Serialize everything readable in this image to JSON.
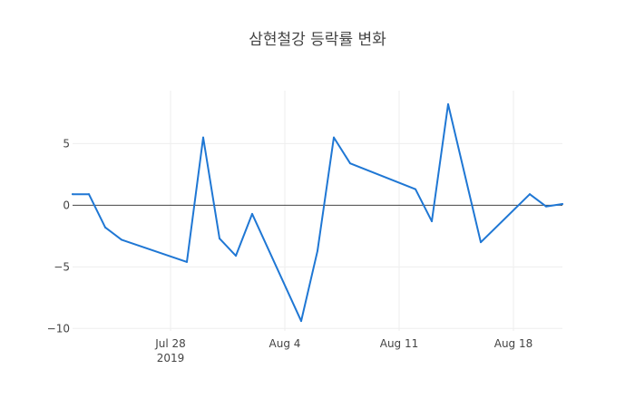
{
  "chart_data": {
    "type": "line",
    "title": "삼현철강 등락률 변화",
    "xlabel": "",
    "ylabel": "",
    "x": [
      "2019-07-22",
      "2019-07-23",
      "2019-07-24",
      "2019-07-25",
      "2019-07-29",
      "2019-07-30",
      "2019-07-31",
      "2019-08-01",
      "2019-08-02",
      "2019-08-05",
      "2019-08-06",
      "2019-08-07",
      "2019-08-08",
      "2019-08-12",
      "2019-08-13",
      "2019-08-14",
      "2019-08-16",
      "2019-08-19",
      "2019-08-20",
      "2019-08-21"
    ],
    "series": [
      {
        "values": [
          0.9,
          0.9,
          -1.8,
          -2.8,
          -4.6,
          5.5,
          -2.7,
          -4.1,
          -0.7,
          -9.4,
          -3.7,
          5.5,
          3.4,
          1.3,
          -1.3,
          8.2,
          -3.0,
          0.9,
          -0.1,
          0.1
        ],
        "color": "#1f77d4"
      }
    ],
    "xlim": [
      "2019-07-22",
      "2019-08-21"
    ],
    "ylim": [
      -10.2,
      9.3
    ],
    "x_ticks": [
      {
        "date": "2019-07-28",
        "label": "Jul 28",
        "sublabel": "2019"
      },
      {
        "date": "2019-08-04",
        "label": "Aug 4",
        "sublabel": ""
      },
      {
        "date": "2019-08-11",
        "label": "Aug 11",
        "sublabel": ""
      },
      {
        "date": "2019-08-18",
        "label": "Aug 18",
        "sublabel": ""
      }
    ],
    "y_ticks": [
      {
        "value": 5,
        "label": "5"
      },
      {
        "value": 0,
        "label": "0"
      },
      {
        "value": -5,
        "label": "−5"
      },
      {
        "value": -10,
        "label": "−10"
      }
    ],
    "grid": true,
    "legend": "none"
  }
}
